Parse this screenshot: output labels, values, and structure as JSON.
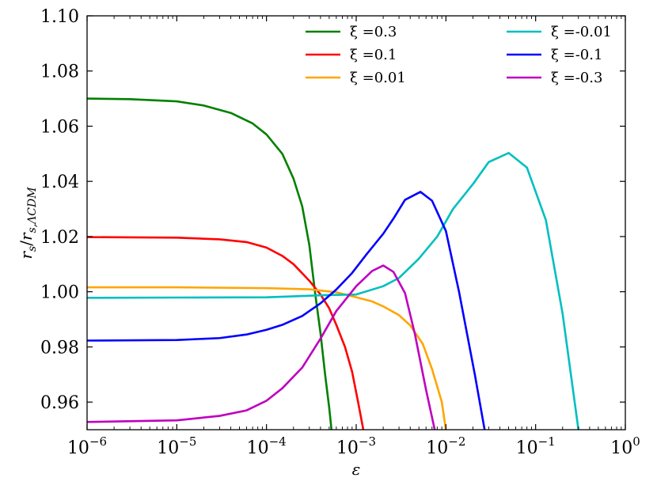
{
  "chart_data": {
    "type": "line",
    "xlabel": "ε",
    "ylabel_main": "r",
    "ylabel_sub": "s",
    "ylabel_den": "r",
    "ylabel_den_sub": "s,ΛCDM",
    "xscale": "log",
    "xlim": [
      1e-06,
      1
    ],
    "ylim": [
      0.95,
      1.1
    ],
    "x_ticks": [
      {
        "base": "10",
        "exp": "−6",
        "value": 1e-06
      },
      {
        "base": "10",
        "exp": "−5",
        "value": 1e-05
      },
      {
        "base": "10",
        "exp": "−4",
        "value": 0.0001
      },
      {
        "base": "10",
        "exp": "−3",
        "value": 0.001
      },
      {
        "base": "10",
        "exp": "−2",
        "value": 0.01
      },
      {
        "base": "10",
        "exp": "−1",
        "value": 0.1
      },
      {
        "base": "10",
        "exp": "0",
        "value": 1
      }
    ],
    "y_ticks": [
      "0.96",
      "0.98",
      "1.00",
      "1.02",
      "1.04",
      "1.06",
      "1.08",
      "1.10"
    ],
    "legend_position": "top",
    "series": [
      {
        "name": "ξ =0.3",
        "color": "#008000",
        "x": [
          1e-06,
          3e-06,
          1e-05,
          2e-05,
          4e-05,
          7e-05,
          0.0001,
          0.00015,
          0.0002,
          0.00025,
          0.0003,
          0.00035,
          0.0004,
          0.00045,
          0.0005,
          0.00055
        ],
        "y": [
          1.07,
          1.0698,
          1.069,
          1.0675,
          1.0648,
          1.061,
          1.057,
          1.05,
          1.041,
          1.031,
          1.017,
          0.999,
          0.985,
          0.97,
          0.958,
          0.945
        ]
      },
      {
        "name": "ξ =0.1",
        "color": "#ff0000",
        "x": [
          1e-06,
          1e-05,
          3e-05,
          6e-05,
          0.0001,
          0.00015,
          0.0002,
          0.0003,
          0.0004,
          0.0005,
          0.0006,
          0.00075,
          0.0009,
          0.00105,
          0.0012,
          0.0013
        ],
        "y": [
          1.0198,
          1.0196,
          1.019,
          1.018,
          1.016,
          1.013,
          1.01,
          1.004,
          0.999,
          0.994,
          0.988,
          0.98,
          0.971,
          0.96,
          0.95,
          0.94
        ]
      },
      {
        "name": "ξ =0.01",
        "color": "#ffa500",
        "x": [
          1e-06,
          1e-05,
          0.0001,
          0.0003,
          0.0006,
          0.001,
          0.0015,
          0.002,
          0.003,
          0.004,
          0.0055,
          0.007,
          0.009,
          0.0102
        ],
        "y": [
          1.0016,
          1.0016,
          1.0013,
          1.0009,
          0.9998,
          0.998,
          0.9965,
          0.9947,
          0.9915,
          0.9878,
          0.9812,
          0.972,
          0.96,
          0.948
        ]
      },
      {
        "name": "ξ =-0.01",
        "color": "#00bfbf",
        "x": [
          1e-06,
          1e-05,
          0.0001,
          0.0005,
          0.001,
          0.002,
          0.003,
          0.005,
          0.008,
          0.012,
          0.02,
          0.03,
          0.05,
          0.08,
          0.13,
          0.2,
          0.3
        ],
        "y": [
          0.9978,
          0.9979,
          0.998,
          0.9988,
          0.999,
          1.002,
          1.005,
          1.012,
          1.02,
          1.03,
          1.039,
          1.047,
          1.0503,
          1.045,
          1.026,
          0.992,
          0.95
        ]
      },
      {
        "name": "ξ =-0.1",
        "color": "#0000ff",
        "x": [
          1e-06,
          1e-05,
          3e-05,
          6e-05,
          0.0001,
          0.00015,
          0.00025,
          0.0004,
          0.0006,
          0.0009,
          0.0013,
          0.002,
          0.0026,
          0.0035,
          0.0052,
          0.007,
          0.01,
          0.014,
          0.021,
          0.027,
          0.03
        ],
        "y": [
          0.9823,
          0.9825,
          0.9832,
          0.9845,
          0.9862,
          0.988,
          0.9912,
          0.9958,
          1.0008,
          1.0068,
          1.0135,
          1.021,
          1.0265,
          1.0333,
          1.0362,
          1.033,
          1.022,
          1.0,
          0.97,
          0.95,
          0.94
        ]
      },
      {
        "name": "ξ =-0.3",
        "color": "#bf00bf",
        "x": [
          1e-06,
          1e-05,
          3e-05,
          6e-05,
          0.0001,
          0.00015,
          0.00025,
          0.0004,
          0.0006,
          0.001,
          0.0015,
          0.002,
          0.0026,
          0.0035,
          0.0045,
          0.006,
          0.0075,
          0.0082
        ],
        "y": [
          0.9528,
          0.9534,
          0.955,
          0.957,
          0.9605,
          0.965,
          0.9725,
          0.983,
          0.993,
          1.002,
          1.0075,
          1.0095,
          1.0072,
          0.9995,
          0.9848,
          0.9645,
          0.95,
          0.94
        ]
      }
    ]
  }
}
